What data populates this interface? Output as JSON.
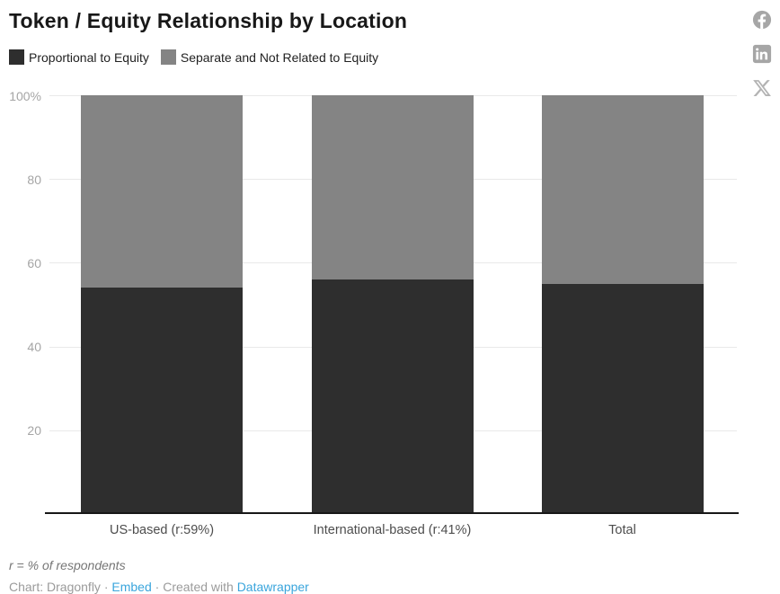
{
  "header": {
    "title": "Token / Equity Relationship by Location"
  },
  "social": {
    "icons": [
      "facebook",
      "linkedin",
      "x"
    ],
    "icon_color": "#a6a6a6"
  },
  "legend": {
    "items": [
      {
        "label": "Proportional to Equity",
        "color": "#2e2e2e"
      },
      {
        "label": "Separate and Not Related to Equity",
        "color": "#848484"
      }
    ]
  },
  "chart_data": {
    "type": "bar",
    "stacked": true,
    "title": "Token / Equity Relationship by Location",
    "categories": [
      "US-based (r:59%)",
      "International-based (r:41%)",
      "Total"
    ],
    "series": [
      {
        "name": "Proportional to Equity",
        "color": "#2e2e2e",
        "values": [
          54,
          56,
          55
        ]
      },
      {
        "name": "Separate and Not Related to Equity",
        "color": "#848484",
        "values": [
          46,
          44,
          45
        ]
      }
    ],
    "xlabel": "",
    "ylabel": "",
    "ylim": [
      0,
      100
    ],
    "yticks": [
      {
        "value": 100,
        "label": "100%"
      },
      {
        "value": 80,
        "label": "80"
      },
      {
        "value": 60,
        "label": "60"
      },
      {
        "value": 40,
        "label": "40"
      },
      {
        "value": 20,
        "label": "20"
      }
    ],
    "grid": true,
    "legend_position": "top-left"
  },
  "footer": {
    "note": "r = % of respondents",
    "attribution_prefix": "Chart: Dragonfly",
    "separator1": "·",
    "embed_link": "Embed",
    "separator2": "·",
    "created_with": "Created with",
    "datawrapper_link": "Datawrapper",
    "link_color": "#3aa5dc"
  }
}
